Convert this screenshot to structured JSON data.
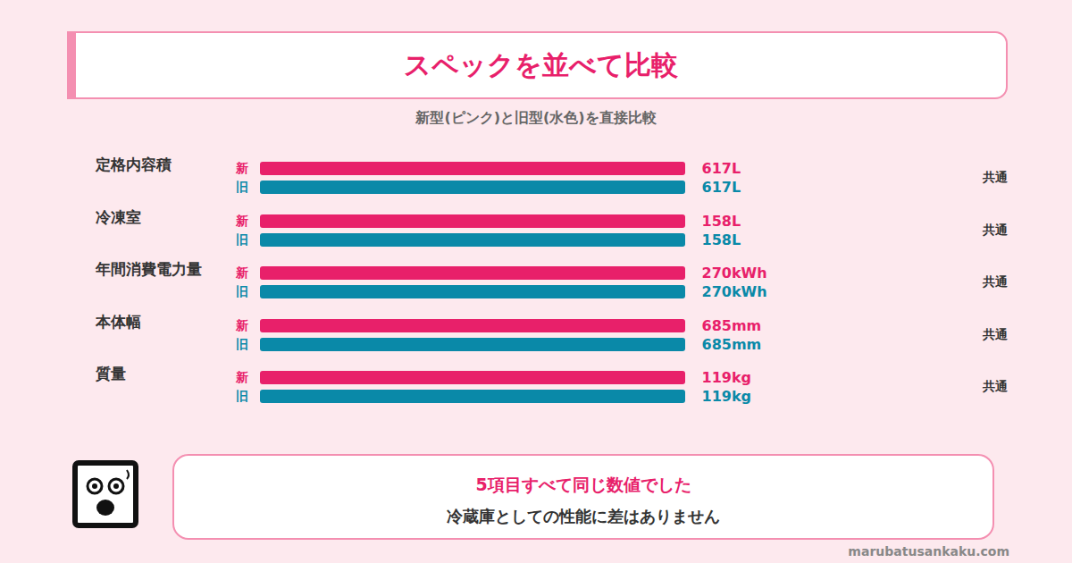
{
  "title": "スペックを並べて比較",
  "subtitle": "新型(ピンク)と旧型(水色)を直接比較",
  "chart_data": [
    {
      "type": "bar",
      "orientation": "horizontal",
      "title": "定格内容積",
      "categories": [
        "新",
        "旧"
      ],
      "values": [
        617,
        617
      ],
      "value_labels": [
        "617L",
        "617L"
      ],
      "colors": [
        "#e8206a",
        "#0a89a8"
      ],
      "xlim": [
        0,
        617
      ],
      "tick_labels": "y",
      "data_labels": true,
      "annotations": [
        "共通"
      ]
    },
    {
      "type": "bar",
      "orientation": "horizontal",
      "title": "冷凍室",
      "categories": [
        "新",
        "旧"
      ],
      "values": [
        158,
        158
      ],
      "value_labels": [
        "158L",
        "158L"
      ],
      "colors": [
        "#e8206a",
        "#0a89a8"
      ],
      "xlim": [
        0,
        158
      ],
      "tick_labels": "y",
      "data_labels": true,
      "annotations": [
        "共通"
      ]
    },
    {
      "type": "bar",
      "orientation": "horizontal",
      "title": "年間消費電力量",
      "categories": [
        "新",
        "旧"
      ],
      "values": [
        270,
        270
      ],
      "value_labels": [
        "270kWh",
        "270kWh"
      ],
      "colors": [
        "#e8206a",
        "#0a89a8"
      ],
      "xlim": [
        0,
        270
      ],
      "tick_labels": "y",
      "data_labels": true,
      "annotations": [
        "共通"
      ]
    },
    {
      "type": "bar",
      "orientation": "horizontal",
      "title": "本体幅",
      "categories": [
        "新",
        "旧"
      ],
      "values": [
        685,
        685
      ],
      "value_labels": [
        "685mm",
        "685mm"
      ],
      "colors": [
        "#e8206a",
        "#0a89a8"
      ],
      "xlim": [
        0,
        685
      ],
      "tick_labels": "y",
      "data_labels": true,
      "annotations": [
        "共通"
      ]
    },
    {
      "type": "bar",
      "orientation": "horizontal",
      "title": "質量",
      "categories": [
        "新",
        "旧"
      ],
      "values": [
        119,
        119
      ],
      "value_labels": [
        "119kg",
        "119kg"
      ],
      "colors": [
        "#e8206a",
        "#0a89a8"
      ],
      "xlim": [
        0,
        119
      ],
      "tick_labels": "y",
      "data_labels": true,
      "annotations": [
        "共通"
      ]
    }
  ],
  "callout": {
    "heading": "5項目すべて同じ数値でした",
    "text": "冷蔵庫としての性能に差はありません"
  },
  "footer": "marubatusankaku.com"
}
